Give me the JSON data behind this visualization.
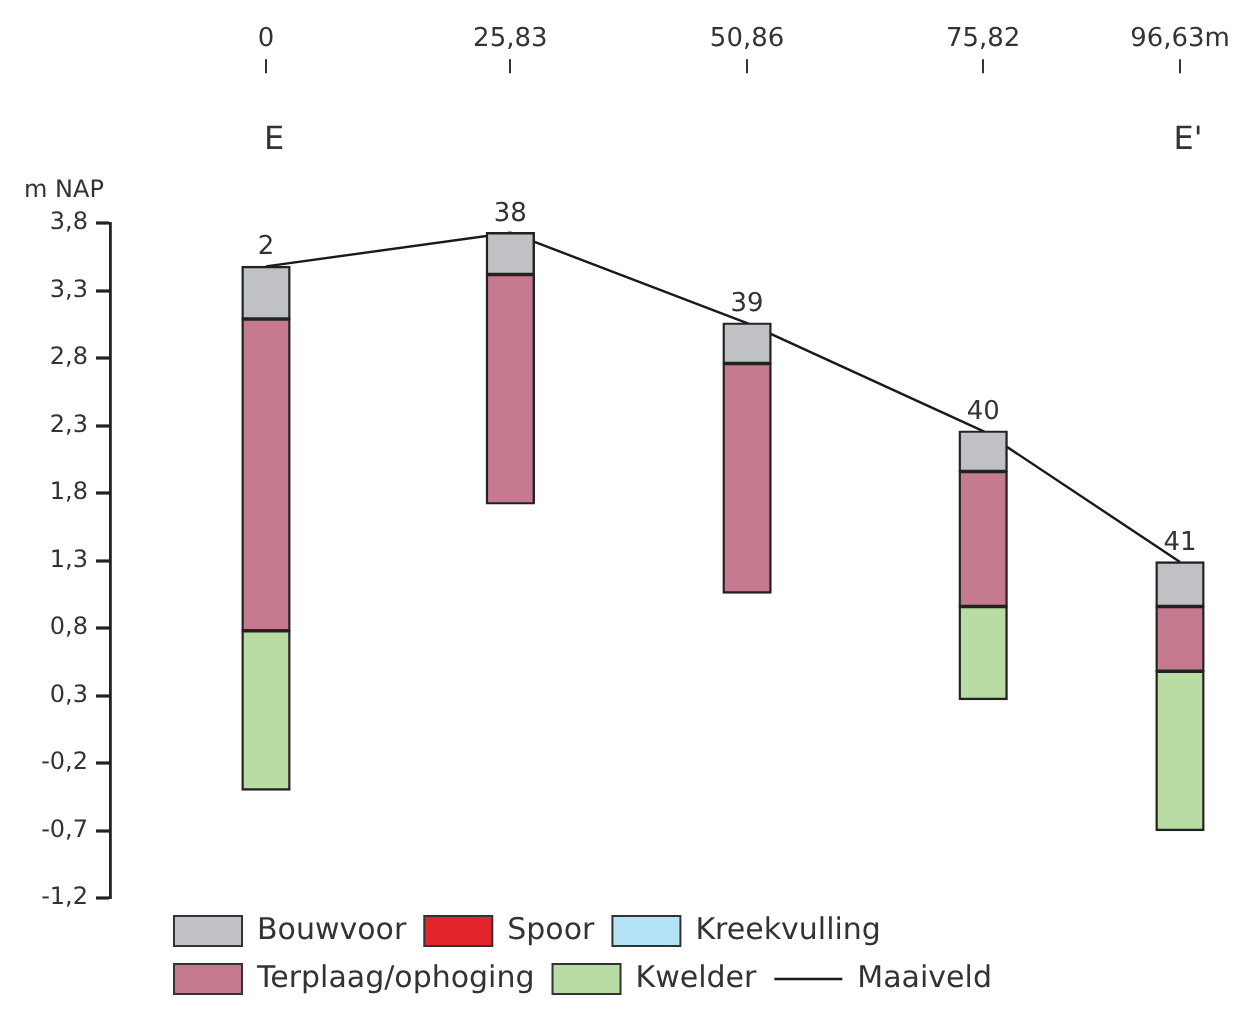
{
  "chart_data": {
    "type": "bar",
    "ylabel": "m NAP",
    "legend": "bottom",
    "x": [
      0,
      25.83,
      50.86,
      75.82,
      96.63
    ],
    "series": [
      {
        "name": "Bouwvoor",
        "color": "#c0c1c4",
        "base": [
          3.09,
          3.42,
          2.76,
          1.96,
          0.96
        ],
        "values": [
          0.39,
          0.31,
          0.3,
          0.3,
          0.33
        ]
      },
      {
        "name": "Spoor",
        "color": "#e3242b",
        "values": [
          null,
          null,
          null,
          null,
          null
        ]
      },
      {
        "name": "Kreekvulling",
        "color": "#b3e3f4",
        "values": [
          null,
          null,
          null,
          null,
          null
        ]
      },
      {
        "name": "Terplaag/ophoging",
        "color": "#c67a90",
        "base": [
          0.78,
          1.72,
          1.06,
          0.96,
          0.48
        ],
        "values": [
          2.31,
          1.7,
          1.7,
          1.0,
          0.48
        ]
      },
      {
        "name": "Kwelder",
        "color": "#b9dca5",
        "base": [
          -0.4,
          null,
          null,
          0.27,
          -0.7
        ],
        "values": [
          1.18,
          null,
          null,
          0.69,
          1.18
        ]
      },
      {
        "name": "Maaiveld",
        "type": "line",
        "color": "#1a1a1a",
        "values": [
          3.48,
          3.73,
          3.06,
          2.26,
          1.29
        ]
      }
    ],
    "xlim": [
      0,
      96.63
    ],
    "xticks": [
      {
        "value": 0,
        "label": "0"
      },
      {
        "value": 25.83,
        "label": "25,83"
      },
      {
        "value": 50.86,
        "label": "50,86"
      },
      {
        "value": 75.82,
        "label": "75,82"
      },
      {
        "value": 96.63,
        "label": "96,63m"
      }
    ],
    "ylim": [
      -1.2,
      3.8
    ],
    "yticks": [
      {
        "value": 3.8,
        "label": "3,8"
      },
      {
        "value": 3.3,
        "label": "3,3"
      },
      {
        "value": 2.8,
        "label": "2,8"
      },
      {
        "value": 2.3,
        "label": "2,3"
      },
      {
        "value": 1.8,
        "label": "1,8"
      },
      {
        "value": 1.3,
        "label": "1,3"
      },
      {
        "value": 0.8,
        "label": "0,8"
      },
      {
        "value": 0.3,
        "label": "0,3"
      },
      {
        "value": -0.2,
        "label": "-0,2"
      },
      {
        "value": -0.7,
        "label": "-0,7"
      },
      {
        "value": -1.2,
        "label": "-1,2"
      }
    ],
    "annotations": [
      "E",
      "E'",
      {
        "text": "2",
        "x": 0,
        "y": 3.48
      },
      {
        "text": "38",
        "x": 25.83,
        "y": 3.73
      },
      {
        "text": "39",
        "x": 50.86,
        "y": 3.06
      },
      {
        "text": "40",
        "x": 75.82,
        "y": 2.26
      },
      {
        "text": "41",
        "x": 96.63,
        "y": 1.29
      }
    ]
  }
}
